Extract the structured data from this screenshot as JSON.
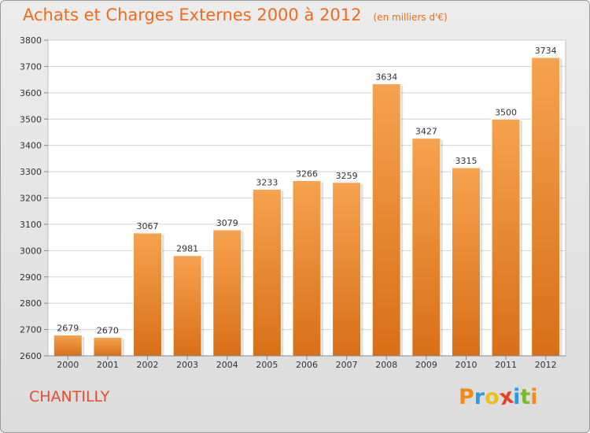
{
  "chart_data": {
    "type": "bar",
    "title": "Achats et Charges Externes 2000 à 2012",
    "subtitle": "(en milliers d'€)",
    "categories": [
      "2000",
      "2001",
      "2002",
      "2003",
      "2004",
      "2005",
      "2006",
      "2007",
      "2008",
      "2009",
      "2010",
      "2011",
      "2012"
    ],
    "values": [
      2679,
      2670,
      3067,
      2981,
      3079,
      3233,
      3266,
      3259,
      3634,
      3427,
      3315,
      3500,
      3734
    ],
    "ylim": [
      2600,
      3800
    ],
    "yticks": [
      "2600",
      "2700",
      "2800",
      "2900",
      "3000",
      "3100",
      "3200",
      "3300",
      "3400",
      "3500",
      "3600",
      "3700",
      "3800"
    ],
    "xlabel": "",
    "ylabel": "",
    "grid": true,
    "bar_color_top": "#f6a24f",
    "bar_color_bottom": "#d86f18"
  },
  "footer": {
    "city": "CHANTILLY",
    "logo_letters": [
      "P",
      "r",
      "o",
      "x",
      "i",
      "t",
      "i"
    ],
    "logo_colors": [
      "#f08a1c",
      "#2c9be0",
      "#e8c21a",
      "#e8412c",
      "#2c9be0",
      "#7ab928",
      "#f08a1c"
    ]
  }
}
